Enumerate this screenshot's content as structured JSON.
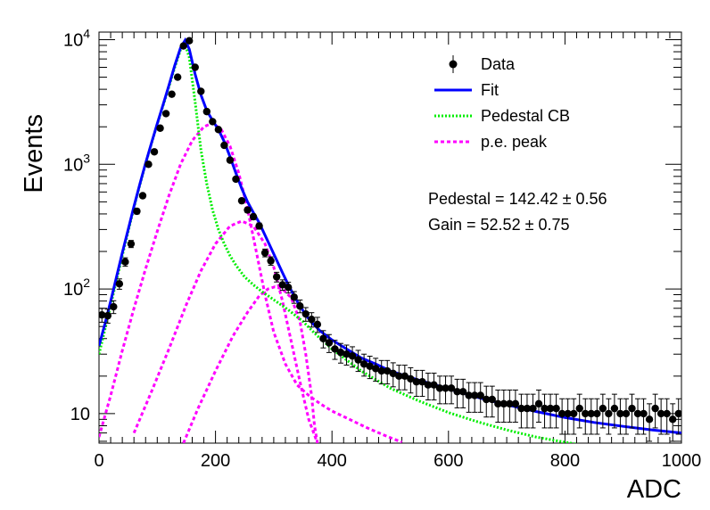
{
  "chart_data": {
    "type": "scatter",
    "xlabel": "ADC",
    "ylabel": "Events",
    "xlim": [
      0,
      1000
    ],
    "ylim": [
      5.8,
      11500
    ],
    "y_scale": "log",
    "grid": false,
    "legend_position": "top-right",
    "x_ticks": [
      {
        "value": 0,
        "label": "0"
      },
      {
        "value": 200,
        "label": "200"
      },
      {
        "value": 400,
        "label": "400"
      },
      {
        "value": 600,
        "label": "600"
      },
      {
        "value": 800,
        "label": "800"
      },
      {
        "value": 1000,
        "label": "1000"
      }
    ],
    "y_ticks": [
      {
        "value": 10,
        "base": "10",
        "exp": ""
      },
      {
        "value": 100,
        "base": "10",
        "exp": "2"
      },
      {
        "value": 1000,
        "base": "10",
        "exp": "3"
      },
      {
        "value": 10000,
        "base": "10",
        "exp": "4"
      }
    ],
    "legend": [
      {
        "label": "Data",
        "style": "marker",
        "color": "#000000"
      },
      {
        "label": "Fit",
        "style": "solid",
        "color": "#0000ff"
      },
      {
        "label": "Pedestal CB",
        "style": "dotted",
        "color": "#00ff00"
      },
      {
        "label": "p.e. peak",
        "style": "dashed",
        "color": "#ff00ff"
      }
    ],
    "annotations": [
      {
        "text": "Pedestal = 142.42",
        "pm": "0.56"
      },
      {
        "text": "Gain = 52.52",
        "pm": "0.75"
      }
    ],
    "series": [
      {
        "name": "Data",
        "kind": "points_with_errors",
        "color": "#000000",
        "points": [
          [
            5,
            62
          ],
          [
            15,
            61
          ],
          [
            25,
            72
          ],
          [
            35,
            110
          ],
          [
            45,
            165
          ],
          [
            55,
            230
          ],
          [
            65,
            420
          ],
          [
            75,
            560
          ],
          [
            85,
            1000
          ],
          [
            95,
            1260
          ],
          [
            105,
            1950
          ],
          [
            115,
            2550
          ],
          [
            125,
            3650
          ],
          [
            135,
            5000
          ],
          [
            145,
            8900
          ],
          [
            155,
            9800
          ],
          [
            165,
            6000
          ],
          [
            175,
            3850
          ],
          [
            185,
            2650
          ],
          [
            195,
            2200
          ],
          [
            205,
            1900
          ],
          [
            215,
            1420
          ],
          [
            225,
            1080
          ],
          [
            235,
            760
          ],
          [
            245,
            510
          ],
          [
            255,
            430
          ],
          [
            265,
            380
          ],
          [
            275,
            320
          ],
          [
            285,
            195
          ],
          [
            295,
            168
          ],
          [
            305,
            125
          ],
          [
            315,
            108
          ],
          [
            325,
            103
          ],
          [
            335,
            86
          ],
          [
            345,
            73
          ],
          [
            355,
            63
          ],
          [
            365,
            57
          ],
          [
            375,
            52
          ],
          [
            385,
            40
          ],
          [
            395,
            37
          ],
          [
            405,
            33
          ],
          [
            415,
            31
          ],
          [
            425,
            30
          ],
          [
            435,
            29
          ],
          [
            445,
            27
          ],
          [
            455,
            25
          ],
          [
            465,
            24
          ],
          [
            475,
            23
          ],
          [
            485,
            22
          ],
          [
            495,
            22
          ],
          [
            505,
            21
          ],
          [
            515,
            20
          ],
          [
            525,
            20
          ],
          [
            535,
            19
          ],
          [
            545,
            18
          ],
          [
            555,
            18
          ],
          [
            565,
            17
          ],
          [
            575,
            17
          ],
          [
            585,
            16
          ],
          [
            595,
            16
          ],
          [
            605,
            16
          ],
          [
            615,
            15
          ],
          [
            625,
            15
          ],
          [
            635,
            14
          ],
          [
            645,
            14
          ],
          [
            655,
            14
          ],
          [
            665,
            13
          ],
          [
            675,
            13
          ],
          [
            685,
            12
          ],
          [
            695,
            12
          ],
          [
            705,
            12
          ],
          [
            715,
            12
          ],
          [
            725,
            11
          ],
          [
            735,
            11
          ],
          [
            745,
            11
          ],
          [
            755,
            12
          ],
          [
            765,
            11
          ],
          [
            775,
            11
          ],
          [
            785,
            11
          ],
          [
            795,
            10
          ],
          [
            805,
            10
          ],
          [
            815,
            10
          ],
          [
            825,
            11
          ],
          [
            835,
            10
          ],
          [
            845,
            10
          ],
          [
            855,
            10
          ],
          [
            865,
            11
          ],
          [
            875,
            10
          ],
          [
            885,
            11
          ],
          [
            895,
            10
          ],
          [
            905,
            10
          ],
          [
            915,
            11
          ],
          [
            925,
            10
          ],
          [
            935,
            10
          ],
          [
            945,
            9
          ],
          [
            955,
            11
          ],
          [
            965,
            10
          ],
          [
            975,
            10
          ],
          [
            985,
            9
          ],
          [
            995,
            10
          ]
        ]
      },
      {
        "name": "Fit",
        "kind": "line",
        "color": "#0000ff",
        "points": [
          [
            0,
            35
          ],
          [
            10,
            52
          ],
          [
            20,
            80
          ],
          [
            30,
            125
          ],
          [
            40,
            195
          ],
          [
            50,
            300
          ],
          [
            60,
            460
          ],
          [
            70,
            690
          ],
          [
            80,
            1020
          ],
          [
            90,
            1480
          ],
          [
            100,
            2120
          ],
          [
            110,
            3000
          ],
          [
            120,
            4300
          ],
          [
            130,
            6200
          ],
          [
            140,
            8600
          ],
          [
            148,
            9900
          ],
          [
            155,
            8400
          ],
          [
            165,
            5300
          ],
          [
            175,
            3600
          ],
          [
            185,
            2700
          ],
          [
            195,
            2250
          ],
          [
            205,
            1900
          ],
          [
            215,
            1520
          ],
          [
            225,
            1150
          ],
          [
            235,
            850
          ],
          [
            245,
            640
          ],
          [
            255,
            500
          ],
          [
            265,
            410
          ],
          [
            275,
            340
          ],
          [
            285,
            270
          ],
          [
            295,
            215
          ],
          [
            305,
            170
          ],
          [
            315,
            135
          ],
          [
            325,
            108
          ],
          [
            335,
            88
          ],
          [
            345,
            73
          ],
          [
            355,
            62
          ],
          [
            365,
            54
          ],
          [
            380,
            46
          ],
          [
            400,
            39
          ],
          [
            425,
            33
          ],
          [
            450,
            28
          ],
          [
            475,
            25
          ],
          [
            500,
            22
          ],
          [
            550,
            18.5
          ],
          [
            600,
            15.8
          ],
          [
            650,
            13.5
          ],
          [
            700,
            11.8
          ],
          [
            750,
            10.4
          ],
          [
            800,
            9.3
          ],
          [
            850,
            8.5
          ],
          [
            900,
            7.9
          ],
          [
            950,
            7.4
          ],
          [
            1000,
            7.0
          ]
        ]
      },
      {
        "name": "Pedestal CB",
        "kind": "line",
        "color": "#00ff00",
        "points": [
          [
            0,
            30
          ],
          [
            10,
            47
          ],
          [
            20,
            74
          ],
          [
            30,
            118
          ],
          [
            40,
            185
          ],
          [
            50,
            290
          ],
          [
            60,
            450
          ],
          [
            70,
            680
          ],
          [
            80,
            1010
          ],
          [
            90,
            1470
          ],
          [
            100,
            2100
          ],
          [
            110,
            2950
          ],
          [
            120,
            4200
          ],
          [
            130,
            6000
          ],
          [
            140,
            8300
          ],
          [
            148,
            9200
          ],
          [
            155,
            7200
          ],
          [
            165,
            3200
          ],
          [
            175,
            1300
          ],
          [
            185,
            700
          ],
          [
            195,
            430
          ],
          [
            205,
            300
          ],
          [
            215,
            230
          ],
          [
            225,
            185
          ],
          [
            235,
            155
          ],
          [
            250,
            125
          ],
          [
            265,
            108
          ],
          [
            280,
            95
          ],
          [
            300,
            82
          ],
          [
            325,
            68
          ],
          [
            350,
            55
          ],
          [
            375,
            42
          ],
          [
            400,
            33
          ],
          [
            450,
            22
          ],
          [
            500,
            16
          ],
          [
            550,
            12.6
          ],
          [
            600,
            10.2
          ],
          [
            650,
            8.6
          ],
          [
            700,
            7.4
          ],
          [
            750,
            6.5
          ],
          [
            800,
            5.9
          ],
          [
            850,
            5.4
          ],
          [
            900,
            5.0
          ]
        ]
      },
      {
        "name": "p.e. peak 1",
        "kind": "line",
        "color": "#ff00ff",
        "points": [
          [
            0,
            6.5
          ],
          [
            20,
            14
          ],
          [
            40,
            32
          ],
          [
            60,
            70
          ],
          [
            80,
            145
          ],
          [
            100,
            290
          ],
          [
            120,
            560
          ],
          [
            140,
            1000
          ],
          [
            160,
            1550
          ],
          [
            180,
            2000
          ],
          [
            195,
            2150
          ],
          [
            210,
            1900
          ],
          [
            225,
            1400
          ],
          [
            240,
            850
          ],
          [
            255,
            440
          ],
          [
            270,
            200
          ],
          [
            285,
            90
          ],
          [
            300,
            45
          ],
          [
            320,
            25
          ],
          [
            340,
            17
          ],
          [
            360,
            14
          ],
          [
            380,
            12
          ],
          [
            400,
            10.5
          ],
          [
            430,
            9
          ],
          [
            460,
            7.7
          ],
          [
            490,
            6.7
          ],
          [
            520,
            5.9
          ]
        ]
      },
      {
        "name": "p.e. peak 2",
        "kind": "line",
        "color": "#ff00ff",
        "points": [
          [
            60,
            7
          ],
          [
            90,
            15
          ],
          [
            120,
            33
          ],
          [
            150,
            75
          ],
          [
            175,
            140
          ],
          [
            200,
            230
          ],
          [
            225,
            320
          ],
          [
            245,
            350
          ],
          [
            265,
            320
          ],
          [
            285,
            230
          ],
          [
            300,
            150
          ],
          [
            315,
            80
          ],
          [
            330,
            38
          ],
          [
            345,
            18
          ],
          [
            360,
            9
          ],
          [
            375,
            5.8
          ]
        ]
      },
      {
        "name": "p.e. peak 3",
        "kind": "line",
        "color": "#ff00ff",
        "points": [
          [
            145,
            5.8
          ],
          [
            170,
            11
          ],
          [
            200,
            22
          ],
          [
            230,
            42
          ],
          [
            255,
            65
          ],
          [
            275,
            88
          ],
          [
            290,
            100
          ],
          [
            302,
            104
          ],
          [
            315,
            100
          ],
          [
            330,
            85
          ],
          [
            345,
            55
          ],
          [
            355,
            30
          ],
          [
            365,
            14
          ],
          [
            370,
            8
          ],
          [
            375,
            5.8
          ]
        ]
      }
    ]
  }
}
